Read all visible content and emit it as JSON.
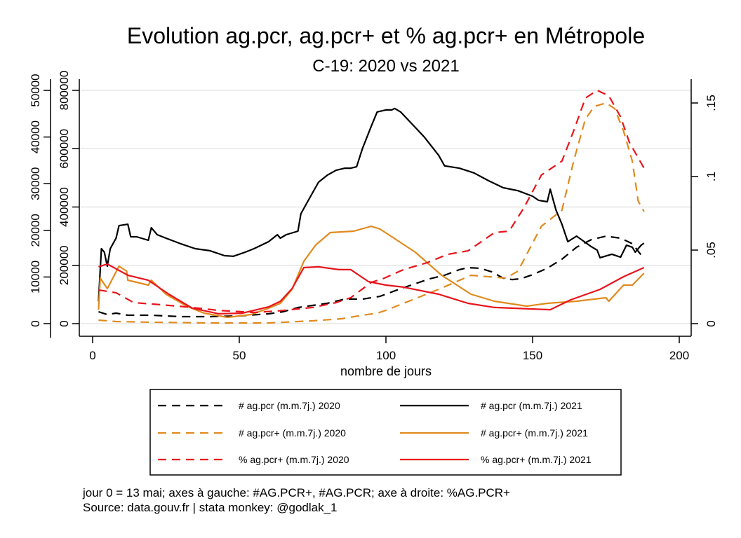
{
  "chart_data": {
    "type": "line",
    "title": "Evolution ag.pcr, ag.pcr+ et % ag.pcr+ en Métropole",
    "subtitle": "C-19: 2020 vs 2021",
    "xlabel": "nombre de jours",
    "xlim": [
      0,
      200
    ],
    "x_ticks": [
      "0",
      "50",
      "100",
      "150",
      "200"
    ],
    "x_tick_values": [
      0,
      50,
      100,
      150,
      200
    ],
    "grid": true,
    "legend_position": "bottom",
    "axes": {
      "pos": {
        "side": "left-outer",
        "range": [
          0,
          50000
        ],
        "ticks": [
          "0",
          "10000",
          "20000",
          "30000",
          "40000",
          "50000"
        ],
        "tick_values": [
          0,
          10000,
          20000,
          30000,
          40000,
          50000
        ]
      },
      "pcr": {
        "side": "left-inner",
        "range": [
          0,
          800000
        ],
        "ticks": [
          "0",
          "200000",
          "400000",
          "600000",
          "800000"
        ],
        "tick_values": [
          0,
          200000,
          400000,
          600000,
          800000
        ]
      },
      "pct": {
        "side": "right",
        "range": [
          0,
          0.15
        ],
        "ticks": [
          "0",
          ".05",
          ".1",
          ".15"
        ],
        "tick_values": [
          0,
          0.05,
          0.1,
          0.15
        ]
      }
    },
    "series": [
      {
        "name": "# ag.pcr (m.m.7j.) 2020",
        "axis": "pcr",
        "color": "#000000",
        "dash": true,
        "points": [
          [
            2,
            40800
          ],
          [
            5,
            31200
          ],
          [
            8,
            36000
          ],
          [
            12,
            28800
          ],
          [
            20,
            28800
          ],
          [
            30,
            24000
          ],
          [
            40,
            24000
          ],
          [
            50,
            26400
          ],
          [
            60,
            33600
          ],
          [
            65,
            40800
          ],
          [
            70,
            55300
          ],
          [
            80,
            69700
          ],
          [
            86,
            84100
          ],
          [
            92,
            84100
          ],
          [
            98,
            93700
          ],
          [
            105,
            120000
          ],
          [
            110,
            137000
          ],
          [
            115,
            154000
          ],
          [
            120,
            166000
          ],
          [
            125,
            185000
          ],
          [
            128,
            192000
          ],
          [
            132,
            190000
          ],
          [
            136,
            178000
          ],
          [
            140,
            156000
          ],
          [
            143,
            151000
          ],
          [
            146,
            154000
          ],
          [
            150,
            168000
          ],
          [
            155,
            190000
          ],
          [
            160,
            221000
          ],
          [
            165,
            262000
          ],
          [
            170,
            288000
          ],
          [
            175,
            300000
          ],
          [
            180,
            293000
          ],
          [
            184,
            274000
          ],
          [
            188,
            223000
          ]
        ]
      },
      {
        "name": "# ag.pcr (m.m.7j.) 2021",
        "axis": "pcr",
        "color": "#000000",
        "dash": false,
        "points": [
          [
            2,
            76900
          ],
          [
            3,
            257000
          ],
          [
            4,
            245000
          ],
          [
            5,
            197000
          ],
          [
            6,
            257000
          ],
          [
            8,
            293000
          ],
          [
            9,
            336000
          ],
          [
            12,
            341000
          ],
          [
            13,
            298000
          ],
          [
            15,
            298000
          ],
          [
            19,
            286000
          ],
          [
            20,
            329000
          ],
          [
            22,
            305000
          ],
          [
            25,
            293000
          ],
          [
            30,
            274000
          ],
          [
            35,
            257000
          ],
          [
            40,
            250000
          ],
          [
            45,
            233000
          ],
          [
            48,
            231000
          ],
          [
            52,
            245000
          ],
          [
            55,
            257000
          ],
          [
            60,
            281000
          ],
          [
            63,
            305000
          ],
          [
            64,
            293000
          ],
          [
            66,
            305000
          ],
          [
            70,
            317000
          ],
          [
            71,
            377000
          ],
          [
            73,
            413000
          ],
          [
            75,
            449000
          ],
          [
            77,
            485000
          ],
          [
            80,
            509000
          ],
          [
            83,
            526000
          ],
          [
            86,
            533000
          ],
          [
            88,
            533000
          ],
          [
            90,
            538000
          ],
          [
            92,
            601000
          ],
          [
            95,
            677000
          ],
          [
            97,
            726000
          ],
          [
            100,
            733000
          ],
          [
            102,
            733000
          ],
          [
            103,
            738000
          ],
          [
            105,
            726000
          ],
          [
            110,
            673000
          ],
          [
            113,
            641000
          ],
          [
            118,
            577000
          ],
          [
            120,
            541000
          ],
          [
            125,
            533000
          ],
          [
            130,
            517000
          ],
          [
            135,
            490000
          ],
          [
            140,
            466000
          ],
          [
            145,
            456000
          ],
          [
            150,
            437000
          ],
          [
            152,
            423000
          ],
          [
            155,
            418000
          ],
          [
            156,
            461000
          ],
          [
            158,
            389000
          ],
          [
            160,
            341000
          ],
          [
            162,
            281000
          ],
          [
            165,
            300000
          ],
          [
            170,
            264000
          ],
          [
            172,
            252000
          ],
          [
            173,
            226000
          ],
          [
            177,
            238000
          ],
          [
            180,
            228000
          ],
          [
            182,
            269000
          ],
          [
            184,
            262000
          ],
          [
            185,
            245000
          ],
          [
            187,
            269000
          ],
          [
            188,
            276000
          ]
        ]
      },
      {
        "name": "# ag.pcr+ (m.m.7j.) 2020",
        "axis": "pos",
        "color": "#e08a1e",
        "dash": true,
        "points": [
          [
            2,
            750
          ],
          [
            8,
            450
          ],
          [
            20,
            300
          ],
          [
            40,
            150
          ],
          [
            60,
            150
          ],
          [
            75,
            600
          ],
          [
            85,
            1050
          ],
          [
            92,
            1800
          ],
          [
            97,
            2250
          ],
          [
            100,
            2850
          ],
          [
            106,
            4350
          ],
          [
            118,
            7360
          ],
          [
            129,
            10360
          ],
          [
            141,
            9760
          ],
          [
            145,
            11260
          ],
          [
            153,
            20870
          ],
          [
            160,
            24320
          ],
          [
            164,
            34830
          ],
          [
            168,
            43840
          ],
          [
            171,
            46550
          ],
          [
            175,
            47300
          ],
          [
            178,
            46100
          ],
          [
            181,
            41290
          ],
          [
            184,
            34830
          ],
          [
            186,
            26280
          ],
          [
            188,
            24020
          ]
        ]
      },
      {
        "name": "# ag.pcr+ (m.m.7j.) 2021",
        "axis": "pos",
        "color": "#e08a1e",
        "dash": false,
        "points": [
          [
            2,
            3000
          ],
          [
            2.6,
            9760
          ],
          [
            5,
            7510
          ],
          [
            8,
            11100
          ],
          [
            9,
            12300
          ],
          [
            11.6,
            11260
          ],
          [
            12,
            9310
          ],
          [
            19,
            8260
          ],
          [
            20,
            9310
          ],
          [
            25,
            6310
          ],
          [
            32,
            3750
          ],
          [
            38,
            2250
          ],
          [
            46,
            1350
          ],
          [
            54,
            1950
          ],
          [
            60,
            3300
          ],
          [
            64,
            4350
          ],
          [
            68,
            7360
          ],
          [
            72,
            13360
          ],
          [
            76,
            16820
          ],
          [
            81,
            19520
          ],
          [
            89,
            19820
          ],
          [
            95,
            20870
          ],
          [
            98,
            20270
          ],
          [
            102,
            18620
          ],
          [
            110,
            15320
          ],
          [
            119,
            10360
          ],
          [
            129,
            6310
          ],
          [
            137,
            4800
          ],
          [
            148,
            3750
          ],
          [
            155,
            4350
          ],
          [
            165,
            4800
          ],
          [
            175,
            5560
          ],
          [
            176,
            4800
          ],
          [
            181,
            8260
          ],
          [
            184,
            8260
          ],
          [
            188,
            10810
          ]
        ]
      },
      {
        "name": "% ag.pcr+ (m.m.7j.) 2020",
        "axis": "pct",
        "color": "#e8141c",
        "dash": true,
        "points": [
          [
            2,
            0.0229
          ],
          [
            8,
            0.021
          ],
          [
            14,
            0.0143
          ],
          [
            23,
            0.0129
          ],
          [
            32,
            0.0114
          ],
          [
            43,
            0.009
          ],
          [
            55,
            0.0076
          ],
          [
            63,
            0.0086
          ],
          [
            75,
            0.011
          ],
          [
            83,
            0.0143
          ],
          [
            88,
            0.0176
          ],
          [
            95,
            0.0281
          ],
          [
            99,
            0.0305
          ],
          [
            106,
            0.0367
          ],
          [
            114,
            0.0414
          ],
          [
            121,
            0.0471
          ],
          [
            128,
            0.0495
          ],
          [
            137,
            0.0619
          ],
          [
            142,
            0.0629
          ],
          [
            147,
            0.0786
          ],
          [
            153,
            0.101
          ],
          [
            160,
            0.1105
          ],
          [
            164,
            0.131
          ],
          [
            168,
            0.1533
          ],
          [
            172,
            0.1586
          ],
          [
            176,
            0.1548
          ],
          [
            180,
            0.1405
          ],
          [
            183,
            0.1233
          ],
          [
            188,
            0.1057
          ]
        ]
      },
      {
        "name": "% ag.pcr+ (m.m.7j.) 2021",
        "axis": "pct",
        "color": "#e8141c",
        "dash": false,
        "points": [
          [
            2,
            0.0386
          ],
          [
            5,
            0.0405
          ],
          [
            12,
            0.0329
          ],
          [
            19,
            0.0295
          ],
          [
            26,
            0.02
          ],
          [
            34,
            0.0105
          ],
          [
            43,
            0.0067
          ],
          [
            51,
            0.0071
          ],
          [
            60,
            0.0114
          ],
          [
            64,
            0.0152
          ],
          [
            68,
            0.0238
          ],
          [
            72,
            0.0381
          ],
          [
            77,
            0.0386
          ],
          [
            84,
            0.0367
          ],
          [
            88,
            0.0367
          ],
          [
            94,
            0.0286
          ],
          [
            100,
            0.0262
          ],
          [
            106,
            0.0248
          ],
          [
            118,
            0.02
          ],
          [
            128,
            0.0138
          ],
          [
            137,
            0.011
          ],
          [
            156,
            0.0095
          ],
          [
            163,
            0.0162
          ],
          [
            173,
            0.0233
          ],
          [
            181,
            0.0319
          ],
          [
            188,
            0.0381
          ]
        ]
      }
    ],
    "legend_order": [
      0,
      1,
      2,
      3,
      4,
      5
    ]
  },
  "footer": {
    "line1": "jour 0 = 13 mai; axes à gauche: #AG.PCR+, #AG.PCR; axe à droite: %AG.PCR+",
    "line2": "Source: data.gouv.fr | stata monkey: @godlak_1"
  }
}
